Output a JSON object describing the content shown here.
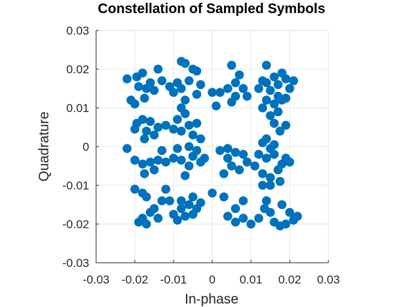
{
  "chart_data": {
    "type": "scatter",
    "title": "Constellation of Sampled Symbols",
    "xlabel": "In-phase",
    "ylabel": "Quadrature",
    "xlim": [
      -0.03,
      0.03
    ],
    "ylim": [
      -0.03,
      0.03
    ],
    "xticks": [
      -0.03,
      -0.02,
      -0.01,
      0,
      0.01,
      0.02,
      0.03
    ],
    "yticks": [
      -0.03,
      -0.02,
      -0.01,
      0,
      0.01,
      0.02,
      0.03
    ],
    "xtick_labels": [
      "-0.03",
      "-0.02",
      "-0.01",
      "0",
      "0.01",
      "0.02",
      "0.03"
    ],
    "ytick_labels": [
      "-0.03",
      "-0.02",
      "-0.01",
      "0",
      "0.01",
      "0.02",
      "0.03"
    ],
    "grid": true,
    "marker_color": "#0072BD",
    "series": [
      {
        "points": [
          [
            -0.022,
            0.0175
          ],
          [
            -0.0195,
            0.018
          ],
          [
            -0.018,
            0.019
          ],
          [
            -0.016,
            0.0165
          ],
          [
            -0.019,
            0.0155
          ],
          [
            -0.017,
            0.015
          ],
          [
            -0.015,
            0.0145
          ],
          [
            -0.0175,
            0.0125
          ],
          [
            -0.02,
            0.011
          ],
          [
            -0.021,
            0.012
          ],
          [
            -0.014,
            0.02
          ],
          [
            -0.013,
            0.017
          ],
          [
            -0.011,
            0.0155
          ],
          [
            -0.009,
            0.0165
          ],
          [
            -0.008,
            0.022
          ],
          [
            -0.007,
            0.0215
          ],
          [
            -0.005,
            0.02
          ],
          [
            -0.004,
            0.0195
          ],
          [
            -0.006,
            0.017
          ],
          [
            -0.003,
            0.016
          ],
          [
            -0.008,
            0.015
          ],
          [
            -0.01,
            0.014
          ],
          [
            -0.004,
            0.0135
          ],
          [
            0.0,
            0.014
          ],
          [
            -0.007,
            0.012
          ],
          [
            0.005,
            0.021
          ],
          [
            0.007,
            0.0185
          ],
          [
            0.006,
            0.0165
          ],
          [
            0.004,
            0.015
          ],
          [
            0.008,
            0.015
          ],
          [
            0.002,
            0.014
          ],
          [
            0.009,
            0.013
          ],
          [
            0.005,
            0.0115
          ],
          [
            0.006,
            0.013
          ],
          [
            0.001,
            0.0105
          ],
          [
            0.013,
            0.017
          ],
          [
            0.012,
            0.015
          ],
          [
            0.014,
            0.0165
          ],
          [
            0.016,
            0.018
          ],
          [
            0.017,
            0.016
          ],
          [
            0.018,
            0.019
          ],
          [
            0.019,
            0.0175
          ],
          [
            0.021,
            0.017
          ],
          [
            0.02,
            0.015
          ],
          [
            0.015,
            0.0145
          ],
          [
            0.017,
            0.013
          ],
          [
            0.019,
            0.0125
          ],
          [
            0.014,
            0.012
          ],
          [
            0.016,
            0.011
          ],
          [
            0.013,
            0.01
          ],
          [
            0.014,
            0.021
          ],
          [
            0.018,
            0.012
          ],
          [
            -0.0195,
            0.006
          ],
          [
            -0.018,
            0.007
          ],
          [
            -0.016,
            0.0065
          ],
          [
            -0.02,
            0.0045
          ],
          [
            -0.017,
            0.004
          ],
          [
            -0.015,
            0.003
          ],
          [
            -0.0175,
            0.002
          ],
          [
            -0.014,
            0.005
          ],
          [
            -0.012,
            0.0055
          ],
          [
            -0.01,
            0.0045
          ],
          [
            -0.008,
            0.01
          ],
          [
            -0.007,
            0.0085
          ],
          [
            -0.009,
            0.007
          ],
          [
            -0.006,
            0.0055
          ],
          [
            -0.005,
            0.003
          ],
          [
            -0.003,
            0.002
          ],
          [
            -0.008,
            0.004
          ],
          [
            -0.004,
            0.006
          ],
          [
            0.015,
            0.008
          ],
          [
            0.017,
            0.009
          ],
          [
            0.019,
            0.0055
          ],
          [
            0.016,
            0.006
          ],
          [
            0.0175,
            0.004
          ],
          [
            0.014,
            0.002
          ],
          [
            0.016,
            0.0005
          ],
          [
            0.013,
            0.001
          ],
          [
            0.015,
            -0.0005
          ],
          [
            -0.022,
            -0.0005
          ],
          [
            -0.02,
            -0.0035
          ],
          [
            -0.018,
            -0.0045
          ],
          [
            -0.0175,
            -0.007
          ],
          [
            -0.016,
            -0.004
          ],
          [
            -0.015,
            -0.006
          ],
          [
            -0.014,
            -0.0035
          ],
          [
            -0.012,
            -0.004
          ],
          [
            -0.01,
            -0.003
          ],
          [
            -0.013,
            -0.001
          ],
          [
            -0.008,
            -0.0035
          ],
          [
            -0.006,
            -0.005
          ],
          [
            -0.005,
            -0.0025
          ],
          [
            -0.003,
            -0.004
          ],
          [
            -0.007,
            -0.0075
          ],
          [
            -0.004,
            -0.001
          ],
          [
            -0.002,
            -0.003
          ],
          [
            -0.009,
            -0.0005
          ],
          [
            -0.006,
            0.0
          ],
          [
            0.002,
            -0.001
          ],
          [
            0.004,
            -0.003
          ],
          [
            0.006,
            -0.0015
          ],
          [
            0.008,
            -0.002
          ],
          [
            0.005,
            -0.005
          ],
          [
            0.003,
            -0.007
          ],
          [
            0.007,
            -0.006
          ],
          [
            0.009,
            -0.004
          ],
          [
            0.004,
            -0.0005
          ],
          [
            0.012,
            -0.002
          ],
          [
            0.014,
            -0.003
          ],
          [
            0.016,
            -0.002
          ],
          [
            0.018,
            -0.0045
          ],
          [
            0.02,
            -0.004
          ],
          [
            0.017,
            -0.006
          ],
          [
            0.015,
            -0.008
          ],
          [
            0.013,
            -0.007
          ],
          [
            0.011,
            -0.005
          ],
          [
            0.015,
            -0.01
          ],
          [
            0.0175,
            -0.009
          ],
          [
            0.013,
            -0.01
          ],
          [
            0.019,
            -0.003
          ],
          [
            -0.019,
            -0.0195
          ],
          [
            -0.018,
            -0.0185
          ],
          [
            -0.017,
            -0.02
          ],
          [
            -0.016,
            -0.017
          ],
          [
            -0.015,
            -0.016
          ],
          [
            -0.014,
            -0.0185
          ],
          [
            -0.018,
            -0.012
          ],
          [
            -0.02,
            -0.011
          ],
          [
            -0.017,
            -0.013
          ],
          [
            -0.013,
            -0.014
          ],
          [
            -0.011,
            -0.014
          ],
          [
            -0.012,
            -0.011
          ],
          [
            -0.01,
            -0.0175
          ],
          [
            -0.009,
            -0.019
          ],
          [
            -0.008,
            -0.016
          ],
          [
            -0.006,
            -0.015
          ],
          [
            -0.005,
            -0.0175
          ],
          [
            -0.004,
            -0.016
          ],
          [
            -0.003,
            -0.0145
          ],
          [
            -0.007,
            -0.018
          ],
          [
            -0.005,
            -0.013
          ],
          [
            -0.008,
            -0.014
          ],
          [
            0.0,
            -0.012
          ],
          [
            0.004,
            -0.018
          ],
          [
            0.006,
            -0.0195
          ],
          [
            0.008,
            -0.0185
          ],
          [
            0.01,
            -0.02
          ],
          [
            0.012,
            -0.0185
          ],
          [
            0.006,
            -0.016
          ],
          [
            0.003,
            -0.013
          ],
          [
            0.008,
            -0.014
          ],
          [
            0.014,
            -0.014
          ],
          [
            0.016,
            -0.0195
          ],
          [
            0.0175,
            -0.0205
          ],
          [
            0.019,
            -0.02
          ],
          [
            0.02,
            -0.017
          ],
          [
            0.022,
            -0.018
          ],
          [
            0.015,
            -0.017
          ],
          [
            0.018,
            -0.015
          ],
          [
            0.0135,
            -0.016
          ],
          [
            0.021,
            -0.019
          ]
        ]
      }
    ]
  }
}
